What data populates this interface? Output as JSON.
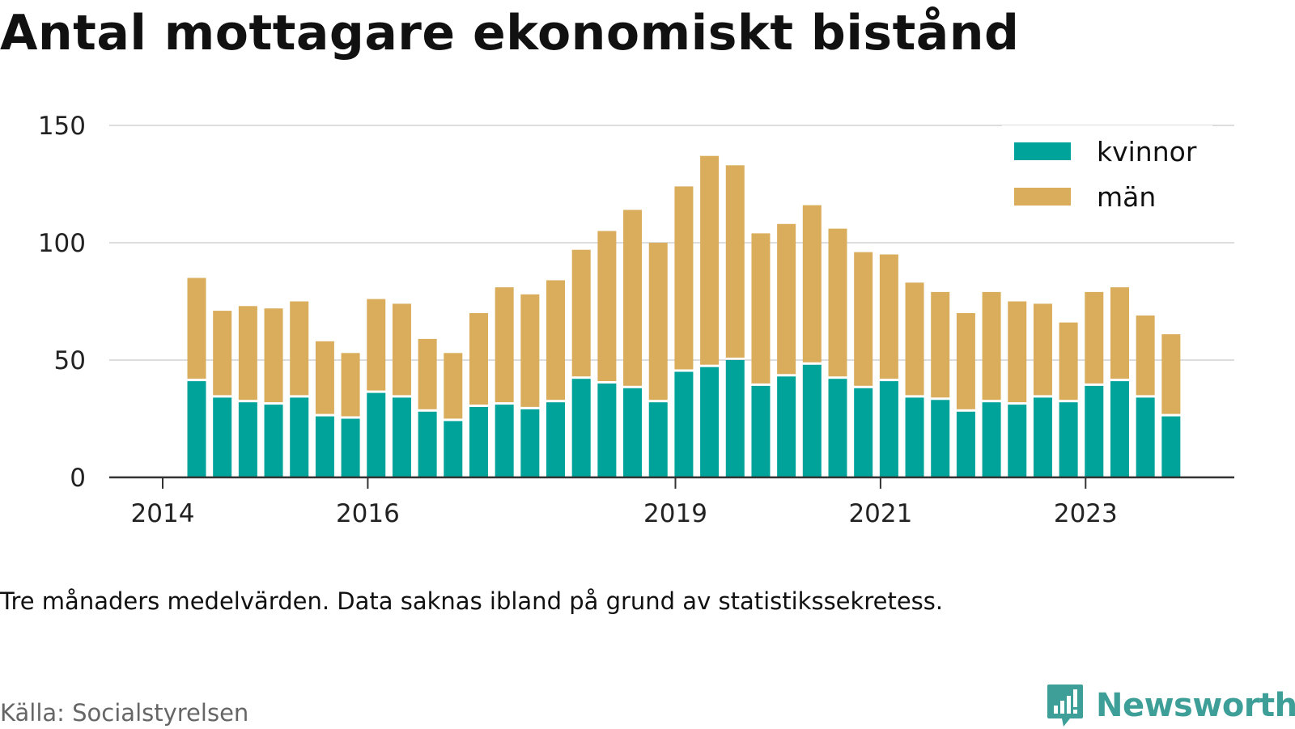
{
  "title": "Antal mottagare ekonomiskt bistånd",
  "note": "Tre månaders medelvärden. Data saknas ibland på grund av statistikssekretess.",
  "source": "Källa: Socialstyrelsen",
  "brand": {
    "name": "Newsworthy",
    "icon": "newsworthy-logo-icon"
  },
  "colors": {
    "kvinnor": "#00a39a",
    "man": "#d9ad5b",
    "grid": "#dddddd",
    "axis": "#333333"
  },
  "chart_data": {
    "type": "bar",
    "stacked": true,
    "ylim": [
      0,
      150
    ],
    "yticks": [
      0,
      50,
      100,
      150
    ],
    "xticks": [
      "2014",
      "2016",
      "2019",
      "2021",
      "2023"
    ],
    "xlabel": "",
    "ylabel": "",
    "grid": true,
    "legend_position": "top-right",
    "series": [
      {
        "name": "kvinnor",
        "color": "#00a39a",
        "values": [
          41,
          34,
          32,
          31,
          34,
          26,
          25,
          36,
          34,
          28,
          24,
          30,
          31,
          29,
          32,
          42,
          40,
          38,
          32,
          45,
          47,
          50,
          39,
          43,
          48,
          42,
          38,
          41,
          34,
          33,
          28,
          32,
          31,
          34,
          32,
          39,
          41,
          34,
          26
        ]
      },
      {
        "name": "män",
        "color": "#d9ad5b",
        "values": [
          44,
          37,
          41,
          41,
          41,
          32,
          28,
          40,
          40,
          31,
          29,
          40,
          50,
          49,
          52,
          55,
          65,
          76,
          68,
          79,
          90,
          83,
          65,
          65,
          68,
          64,
          58,
          54,
          49,
          46,
          42,
          47,
          44,
          40,
          34,
          40,
          40,
          35,
          35
        ]
      }
    ]
  }
}
